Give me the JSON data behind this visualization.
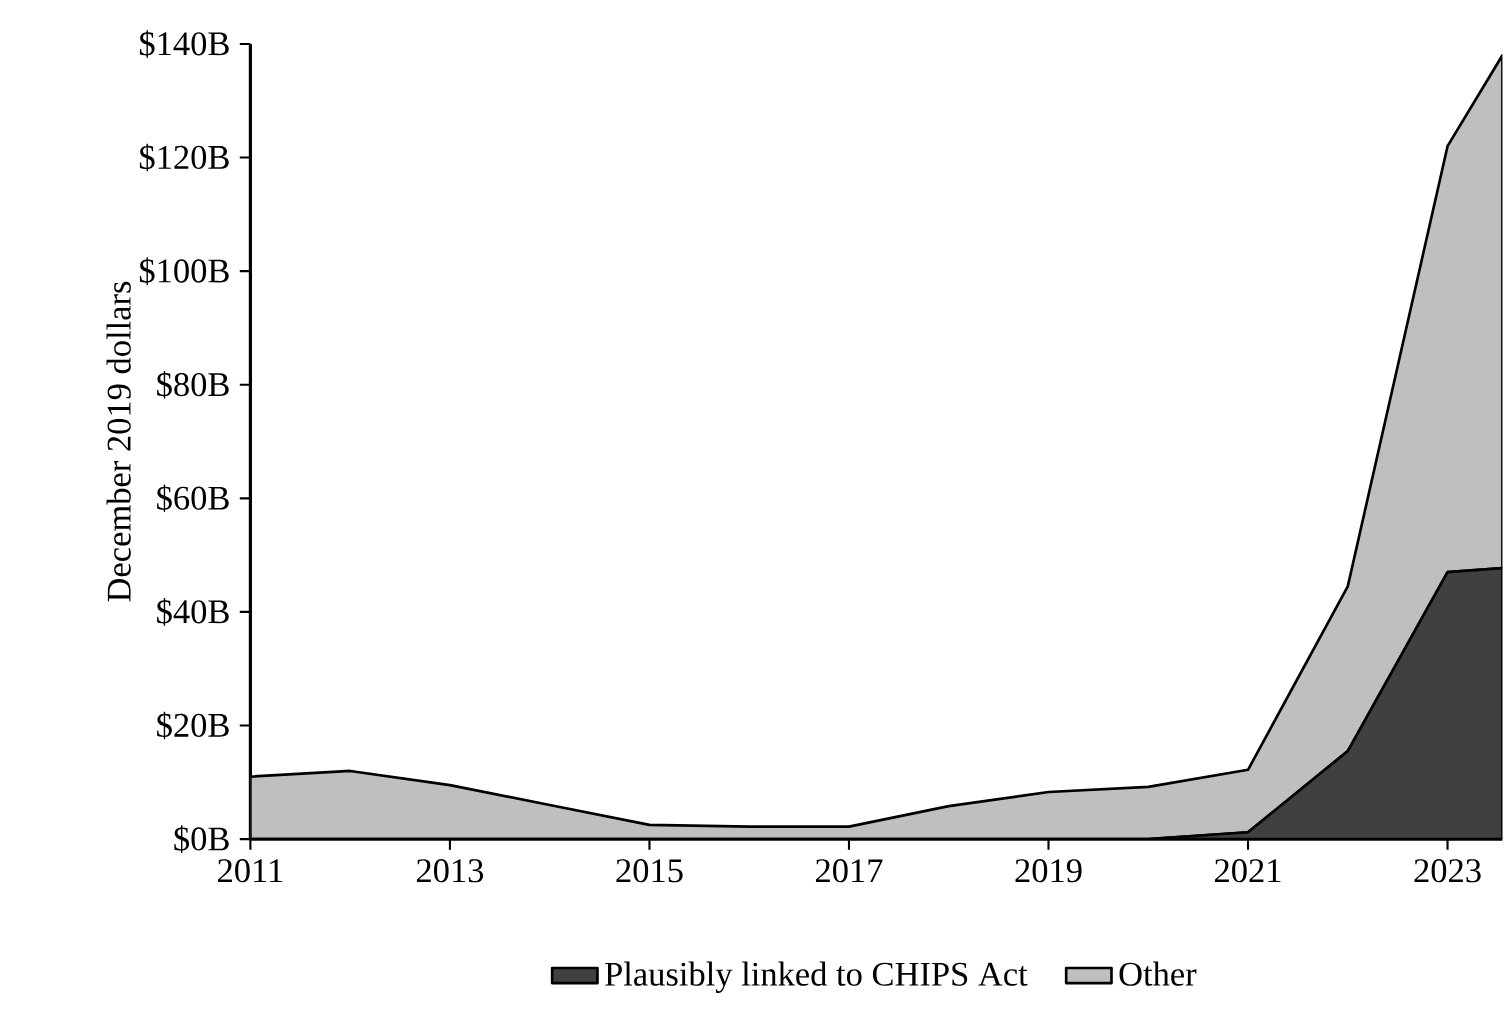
{
  "chart_data": {
    "type": "area",
    "stacked": true,
    "ylabel": "December 2019 dollars",
    "x": [
      2011,
      2012,
      2013,
      2014,
      2015,
      2016,
      2017,
      2018,
      2019,
      2020,
      2021,
      2022,
      2023,
      2023.55
    ],
    "series": [
      {
        "name": "Plausibly linked to CHIPS Act",
        "color": "#404040",
        "values": [
          0,
          0,
          0,
          0,
          0,
          0,
          0,
          0,
          0,
          0,
          1.2,
          15.5,
          47,
          47.7
        ]
      },
      {
        "name": "Other",
        "color": "#bfbfbf",
        "values": [
          11,
          12,
          9.5,
          6,
          2.5,
          2.2,
          2.2,
          5.8,
          8.3,
          9.2,
          11,
          29,
          75,
          90.3
        ]
      }
    ],
    "xlim": [
      2011,
      2023.55
    ],
    "xticks": [
      2011,
      2013,
      2015,
      2017,
      2019,
      2021,
      2023
    ],
    "ylim": [
      0,
      140
    ],
    "yticks": [
      {
        "value": 0,
        "label": "$0B"
      },
      {
        "value": 20,
        "label": "$20B"
      },
      {
        "value": 40,
        "label": "$40B"
      },
      {
        "value": 60,
        "label": "$60B"
      },
      {
        "value": 80,
        "label": "$80B"
      },
      {
        "value": 100,
        "label": "$100B"
      },
      {
        "value": 120,
        "label": "$120B"
      },
      {
        "value": 140,
        "label": "$140B"
      }
    ],
    "grid": false,
    "legend": "bottom"
  }
}
